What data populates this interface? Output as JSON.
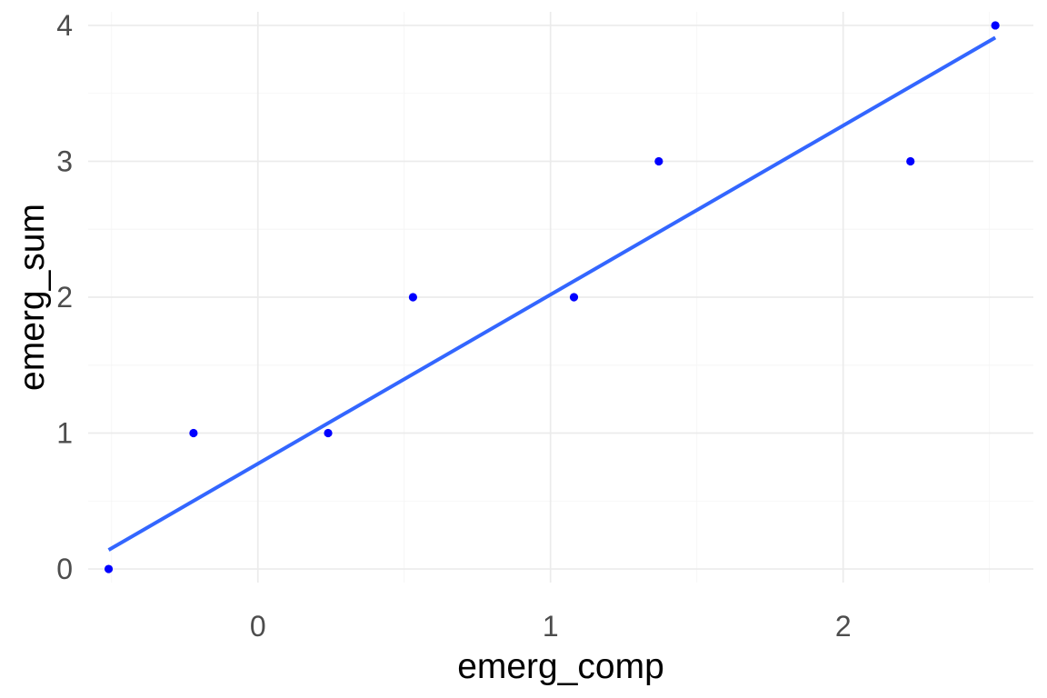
{
  "chart_data": {
    "type": "scatter",
    "title": "",
    "xlabel": "emerg_comp",
    "ylabel": "emerg_sum",
    "xlim": [
      -0.58,
      2.65
    ],
    "ylim": [
      -0.1,
      4.1
    ],
    "x_ticks": [
      0,
      1,
      2
    ],
    "y_ticks": [
      0,
      1,
      2,
      3,
      4
    ],
    "x_tick_labels": [
      "0",
      "1",
      "2"
    ],
    "y_tick_labels": [
      "0",
      "1",
      "2",
      "3",
      "4"
    ],
    "grid": true,
    "series": [
      {
        "type": "scatter",
        "color": "#0000ff",
        "points": [
          {
            "x": -0.51,
            "y": 0
          },
          {
            "x": -0.22,
            "y": 1
          },
          {
            "x": 0.24,
            "y": 1
          },
          {
            "x": 0.53,
            "y": 2
          },
          {
            "x": 1.08,
            "y": 2
          },
          {
            "x": 1.37,
            "y": 3
          },
          {
            "x": 2.23,
            "y": 3
          },
          {
            "x": 2.52,
            "y": 4
          }
        ]
      },
      {
        "type": "line",
        "color": "#3366ff",
        "points": [
          {
            "x": -0.51,
            "y": 0.14
          },
          {
            "x": 2.52,
            "y": 3.91
          }
        ]
      }
    ]
  }
}
